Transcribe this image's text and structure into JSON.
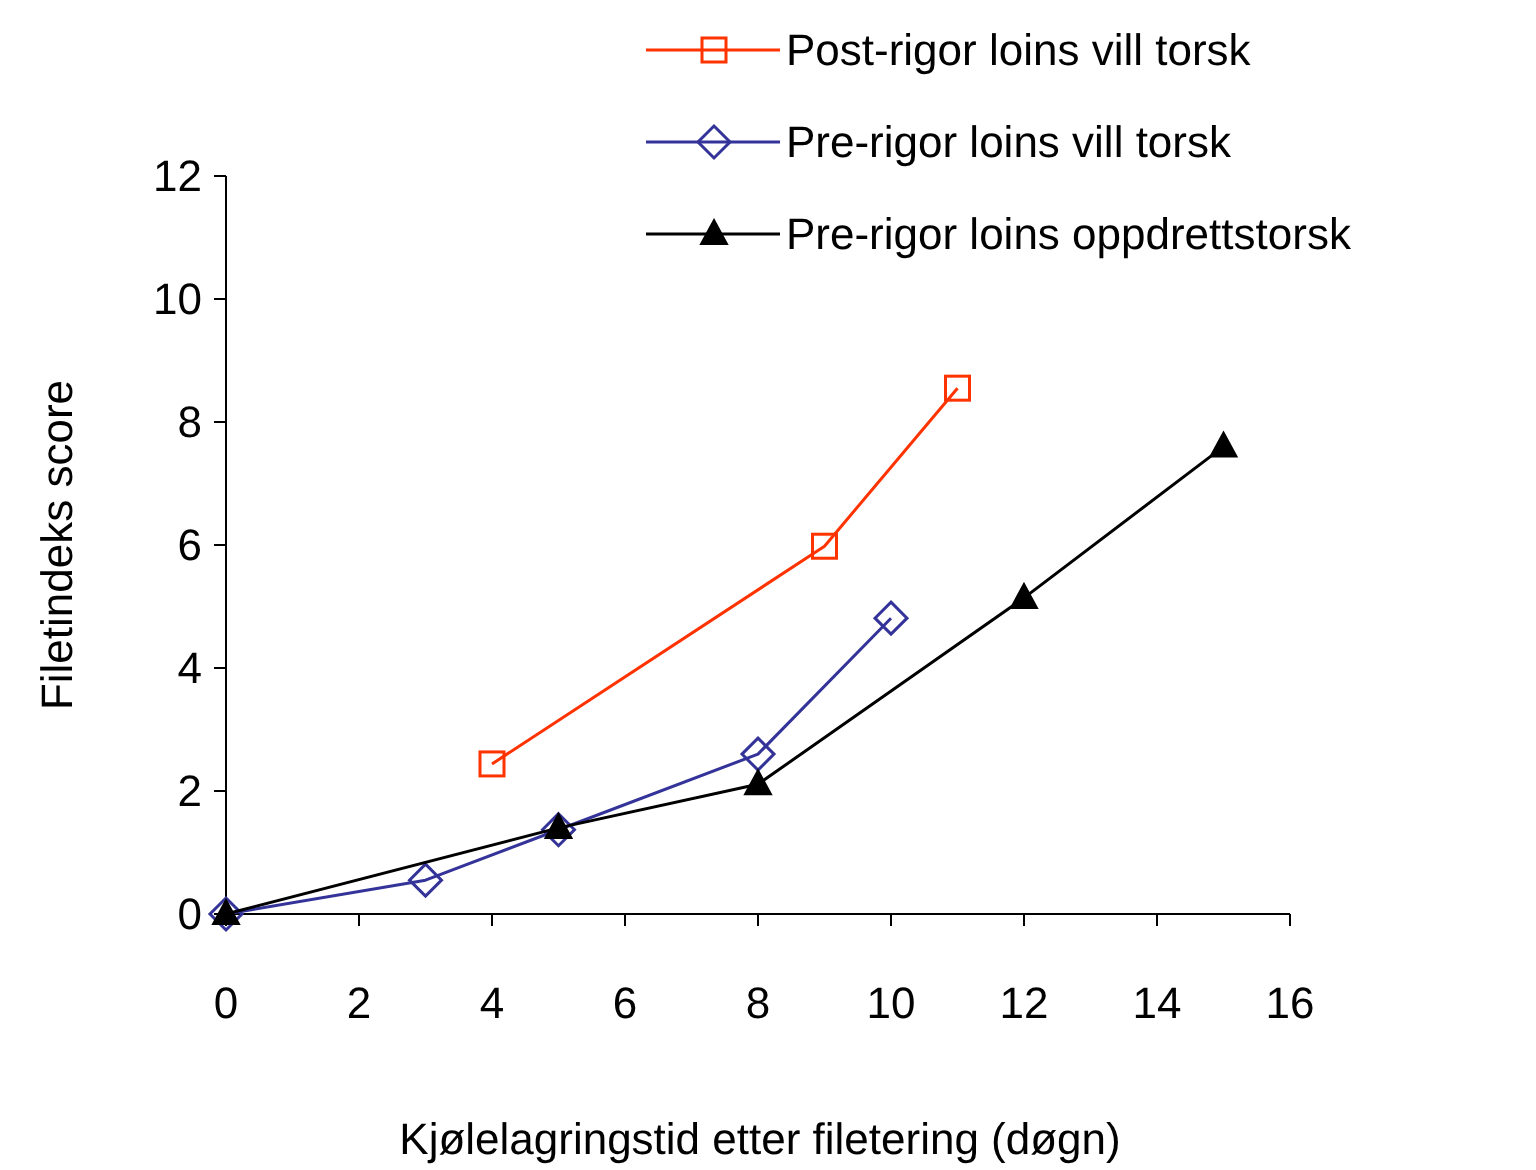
{
  "chart_data": {
    "type": "line",
    "xlabel": "Kjølelagringstid etter filetering (døgn)",
    "ylabel": "Filetindeks score",
    "xlim": [
      0,
      16
    ],
    "xticks": [
      0,
      2,
      4,
      6,
      8,
      10,
      12,
      14,
      16
    ],
    "ylim": [
      0,
      12
    ],
    "yticks": [
      0,
      2,
      4,
      6,
      8,
      10,
      12
    ],
    "grid": false,
    "legend": "top right",
    "series": [
      {
        "name": "Post-rigor loins vill torsk",
        "color": "#ff3300",
        "marker": "square",
        "x": [
          4,
          9,
          11
        ],
        "values": [
          2.44,
          5.98,
          8.55
        ]
      },
      {
        "name": "Pre-rigor loins vill torsk",
        "color": "#333399",
        "marker": "diamond",
        "x": [
          0,
          3,
          5,
          8,
          10
        ],
        "values": [
          0,
          0.55,
          1.37,
          2.6,
          4.81
        ]
      },
      {
        "name": "Pre-rigor loins oppdrettstorsk",
        "color": "#000000",
        "marker": "triangle",
        "x": [
          0,
          5,
          8,
          12,
          15
        ],
        "values": [
          0,
          1.4,
          2.11,
          5.14,
          7.6
        ]
      }
    ]
  }
}
